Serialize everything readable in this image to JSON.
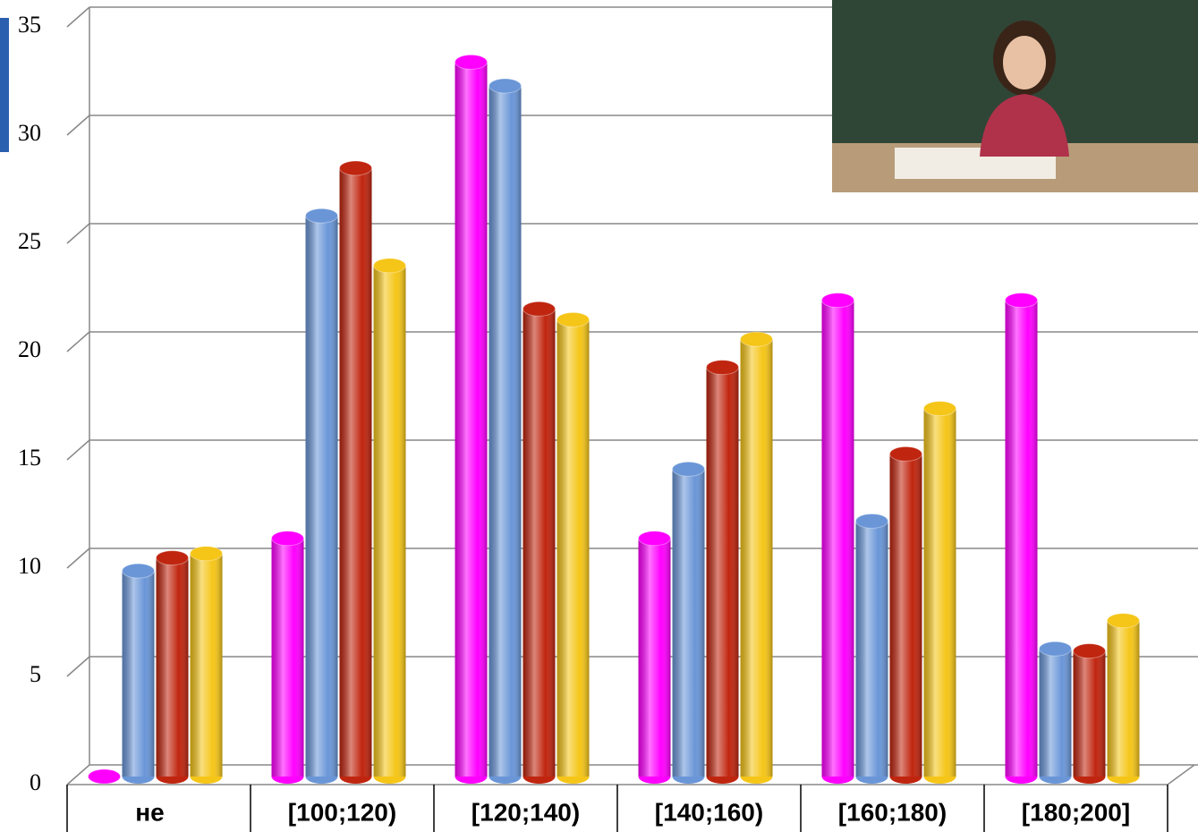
{
  "chart_data": {
    "type": "bar",
    "categories": [
      "не",
      "[100;120)",
      "[120;140)",
      "[140;160)",
      "[160;180)",
      "[180;200]"
    ],
    "series": [
      {
        "color": "#ff00ff",
        "values": [
          0,
          11.0,
          33.0,
          11.0,
          22.0,
          22.0
        ]
      },
      {
        "color": "#6a96d8",
        "values": [
          9.5,
          25.9,
          31.9,
          14.2,
          11.8,
          5.9
        ]
      },
      {
        "color": "#c0250f",
        "values": [
          10.1,
          28.1,
          21.6,
          18.9,
          14.9,
          5.8
        ]
      },
      {
        "color": "#f5c518",
        "values": [
          10.3,
          23.6,
          21.1,
          20.2,
          17.0,
          7.2
        ]
      }
    ],
    "ylim": [
      0,
      35
    ],
    "yticks": [
      0,
      5,
      10,
      15,
      20,
      25,
      30,
      35
    ],
    "grid": true
  }
}
